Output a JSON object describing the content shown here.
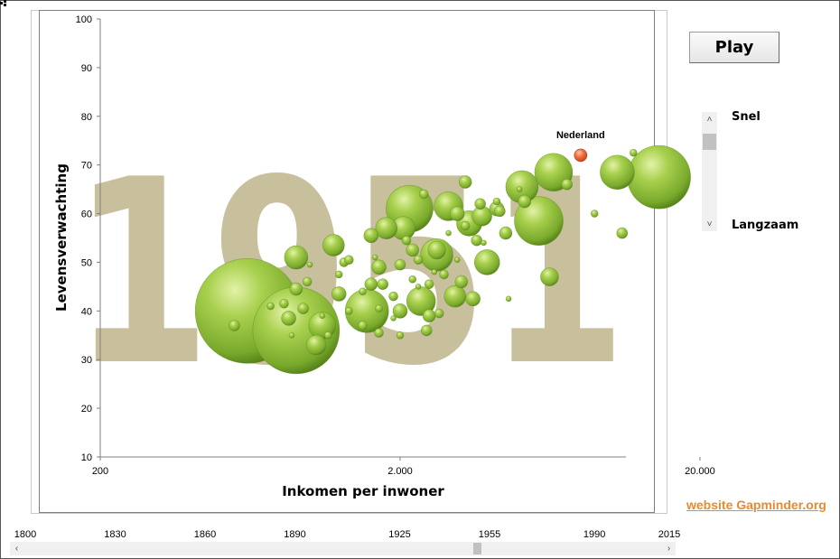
{
  "controls": {
    "play_label": "Play",
    "speed_fast_label": "Snel",
    "speed_slow_label": "Langzaam",
    "speed_value": 0.1,
    "website_link": "website Gapminder.org"
  },
  "timeline": {
    "ticks": [
      "1800",
      "1830",
      "1860",
      "1890",
      "1925",
      "1955",
      "1990",
      "2015"
    ],
    "tick_values": [
      1800,
      1830,
      1860,
      1890,
      1925,
      1955,
      1990,
      2015
    ],
    "min": 1800,
    "max": 2015,
    "current": 1951
  },
  "chart_data": {
    "type": "scatter",
    "subtype": "bubble",
    "year_watermark": "1951",
    "xlabel": "Inkomen  per inwoner",
    "ylabel": "Levensverwachting",
    "x_scale": "log",
    "xlim": [
      200,
      100000
    ],
    "ylim": [
      10,
      100
    ],
    "x_ticks": [
      200,
      2000,
      20000
    ],
    "x_tick_labels": [
      "200",
      "2.000",
      "20.000"
    ],
    "y_ticks": [
      10,
      20,
      30,
      40,
      50,
      60,
      70,
      80,
      90,
      100
    ],
    "grid": false,
    "colors": {
      "bubble": "#8ab83a",
      "highlight": "#f07040",
      "watermark": "#c8bf9c",
      "axis": "#7f7f7f"
    },
    "highlight_label": "Nederland",
    "highlight": {
      "x": 8000,
      "y": 72,
      "r": 7
    },
    "points": [
      {
        "x": 620,
        "y": 40,
        "r": 58
      },
      {
        "x": 900,
        "y": 36,
        "r": 48
      },
      {
        "x": 1550,
        "y": 40,
        "r": 24
      },
      {
        "x": 2150,
        "y": 61,
        "r": 26
      },
      {
        "x": 3400,
        "y": 58,
        "r": 14
      },
      {
        "x": 5800,
        "y": 58.5,
        "r": 27
      },
      {
        "x": 14600,
        "y": 67.5,
        "r": 35
      },
      {
        "x": 10600,
        "y": 68.5,
        "r": 19
      },
      {
        "x": 6500,
        "y": 68.5,
        "r": 21
      },
      {
        "x": 5100,
        "y": 65.5,
        "r": 18
      },
      {
        "x": 2650,
        "y": 51.5,
        "r": 18
      },
      {
        "x": 2900,
        "y": 61.5,
        "r": 16
      },
      {
        "x": 2350,
        "y": 42,
        "r": 16
      },
      {
        "x": 3900,
        "y": 50,
        "r": 14
      },
      {
        "x": 1100,
        "y": 37,
        "r": 15
      },
      {
        "x": 900,
        "y": 51,
        "r": 13
      },
      {
        "x": 1200,
        "y": 53.5,
        "r": 12
      },
      {
        "x": 2050,
        "y": 57,
        "r": 13
      },
      {
        "x": 3050,
        "y": 43,
        "r": 12
      },
      {
        "x": 1800,
        "y": 57,
        "r": 12
      },
      {
        "x": 6300,
        "y": 47,
        "r": 10
      },
      {
        "x": 2650,
        "y": 52.5,
        "r": 10
      },
      {
        "x": 3300,
        "y": 66.5,
        "r": 7
      },
      {
        "x": 3750,
        "y": 59.5,
        "r": 11
      },
      {
        "x": 4200,
        "y": 61,
        "r": 8
      },
      {
        "x": 2000,
        "y": 40,
        "r": 8
      },
      {
        "x": 1250,
        "y": 43.5,
        "r": 8
      },
      {
        "x": 1050,
        "y": 33,
        "r": 11
      },
      {
        "x": 900,
        "y": 44.5,
        "r": 7
      },
      {
        "x": 2500,
        "y": 39,
        "r": 7
      },
      {
        "x": 1700,
        "y": 49,
        "r": 8
      },
      {
        "x": 850,
        "y": 38.5,
        "r": 8
      },
      {
        "x": 3200,
        "y": 46,
        "r": 7
      },
      {
        "x": 3500,
        "y": 42.5,
        "r": 8
      },
      {
        "x": 1600,
        "y": 55.5,
        "r": 8
      },
      {
        "x": 4500,
        "y": 56,
        "r": 7
      },
      {
        "x": 1600,
        "y": 45.5,
        "r": 7
      },
      {
        "x": 1750,
        "y": 45.5,
        "r": 6
      },
      {
        "x": 2200,
        "y": 52.5,
        "r": 7
      },
      {
        "x": 3100,
        "y": 60,
        "r": 8
      },
      {
        "x": 11000,
        "y": 56,
        "r": 6
      },
      {
        "x": 5200,
        "y": 62.5,
        "r": 7
      },
      {
        "x": 7200,
        "y": 66,
        "r": 6
      },
      {
        "x": 2000,
        "y": 49.5,
        "r": 6
      },
      {
        "x": 1500,
        "y": 37,
        "r": 5
      },
      {
        "x": 2700,
        "y": 39.5,
        "r": 5
      },
      {
        "x": 1700,
        "y": 35.5,
        "r": 5
      },
      {
        "x": 1300,
        "y": 50,
        "r": 5
      },
      {
        "x": 1350,
        "y": 50.5,
        "r": 5
      },
      {
        "x": 3600,
        "y": 54.5,
        "r": 6
      },
      {
        "x": 2800,
        "y": 47.5,
        "r": 5
      },
      {
        "x": 2450,
        "y": 36,
        "r": 6
      },
      {
        "x": 560,
        "y": 37,
        "r": 6
      },
      {
        "x": 950,
        "y": 40.5,
        "r": 6
      },
      {
        "x": 820,
        "y": 41.5,
        "r": 5
      },
      {
        "x": 980,
        "y": 46,
        "r": 5
      },
      {
        "x": 1900,
        "y": 43,
        "r": 5
      },
      {
        "x": 2500,
        "y": 45.5,
        "r": 5
      },
      {
        "x": 3700,
        "y": 62,
        "r": 6
      },
      {
        "x": 4300,
        "y": 60.5,
        "r": 6
      },
      {
        "x": 2400,
        "y": 64,
        "r": 5
      },
      {
        "x": 2100,
        "y": 54.5,
        "r": 5
      },
      {
        "x": 2300,
        "y": 50.5,
        "r": 5
      },
      {
        "x": 1250,
        "y": 47.5,
        "r": 4
      },
      {
        "x": 740,
        "y": 41,
        "r": 4
      },
      {
        "x": 1500,
        "y": 44,
        "r": 4
      },
      {
        "x": 2000,
        "y": 35,
        "r": 4
      },
      {
        "x": 3300,
        "y": 57.5,
        "r": 5
      },
      {
        "x": 1150,
        "y": 35,
        "r": 4
      },
      {
        "x": 1350,
        "y": 40,
        "r": 4
      },
      {
        "x": 8900,
        "y": 60,
        "r": 4
      },
      {
        "x": 12000,
        "y": 72.5,
        "r": 4
      },
      {
        "x": 1000,
        "y": 49.5,
        "r": 3
      },
      {
        "x": 1700,
        "y": 40.5,
        "r": 4
      },
      {
        "x": 2200,
        "y": 46.5,
        "r": 4
      },
      {
        "x": 4200,
        "y": 62.5,
        "r": 4
      },
      {
        "x": 3100,
        "y": 50.5,
        "r": 3
      },
      {
        "x": 870,
        "y": 35,
        "r": 3
      },
      {
        "x": 2600,
        "y": 48,
        "r": 3
      },
      {
        "x": 1900,
        "y": 38.5,
        "r": 3
      },
      {
        "x": 1100,
        "y": 39,
        "r": 3
      },
      {
        "x": 3800,
        "y": 54,
        "r": 3
      },
      {
        "x": 2300,
        "y": 45,
        "r": 3
      },
      {
        "x": 4600,
        "y": 42.5,
        "r": 3
      },
      {
        "x": 1650,
        "y": 51,
        "r": 3
      },
      {
        "x": 2900,
        "y": 56,
        "r": 3
      },
      {
        "x": 5000,
        "y": 65,
        "r": 3
      }
    ]
  }
}
